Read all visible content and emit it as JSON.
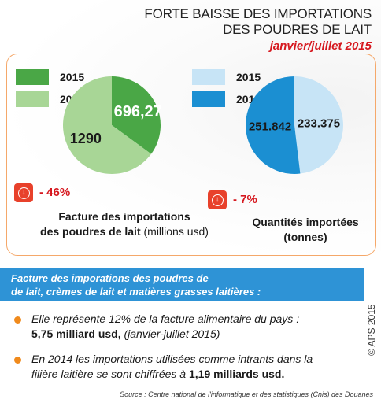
{
  "header": {
    "title_line1": "FORTE BAISSE DES IMPORTATIONS",
    "title_line2": "DES POUDRES DE LAIT",
    "period": "janvier/juillet 2015"
  },
  "colors": {
    "green_2015": "#4aa746",
    "green_2014": "#a8d696",
    "blue_2015": "#1b8fd2",
    "blue_2014": "#c7e4f6",
    "accent_red": "#d6181f",
    "frame_orange": "#f5a86a",
    "band_blue": "#2e93d6",
    "bullet_orange": "#f08a1c"
  },
  "chart_data": [
    {
      "type": "pie",
      "series": [
        {
          "name": "2015",
          "value": 696.27,
          "label": "696,27",
          "color": "#4aa746"
        },
        {
          "name": "2014",
          "value": 1290,
          "label": "1290",
          "color": "#a8d696"
        }
      ],
      "change": "- 46%",
      "change_icon": "down-arrow-icon",
      "caption_line1": "Facture des importations",
      "caption_line2": "des poudres de lait",
      "unit": "(millions usd)"
    },
    {
      "type": "pie",
      "series": [
        {
          "name": "2015",
          "value": 233.375,
          "label": "233.375",
          "color": "#c7e4f6"
        },
        {
          "name": "2014",
          "value": 251.842,
          "label": "251.842",
          "color": "#1b8fd2"
        }
      ],
      "change": "- 7%",
      "change_icon": "down-arrow-icon",
      "caption_line1": "Quantités importées",
      "caption_line2": "(tonnes)"
    }
  ],
  "info": {
    "heading_line1": "Facture des imporations  des poudres de",
    "heading_line2": "de lait, crèmes de lait et matières grasses laitières :",
    "bullet1_line1": "Elle représente 12% de la facture alimentaire du pays :",
    "bullet1_bold": "5,75 milliard usd,",
    "bullet1_rest": " (janvier-juillet 2015)",
    "bullet2_line1": "En 2014 les importations utilisées comme intrants dans la",
    "bullet2_prefix": "filière laitière se sont chiffrées à ",
    "bullet2_bold": "1,19 milliards usd."
  },
  "credit": "© APS 2015",
  "source": "Source : Centre national de l'informatique et des statistiques (Cnis) des Douanes"
}
